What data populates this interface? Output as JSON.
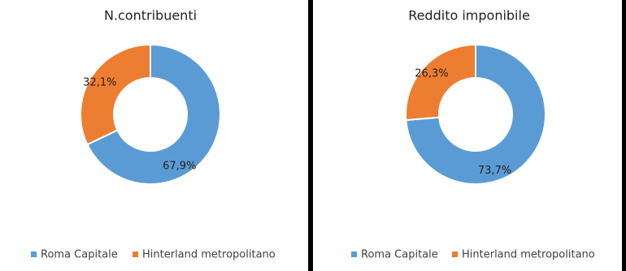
{
  "chart_data": [
    {
      "type": "donut",
      "title": "N.contribuenti",
      "categories": [
        "Roma Capitale",
        "Hinterland metropolitano"
      ],
      "colors": [
        "#5b9bd5",
        "#ed7d31"
      ],
      "values": [
        67.9,
        32.1
      ],
      "value_labels": [
        "67,9%",
        "32,1%"
      ]
    },
    {
      "type": "donut",
      "title": "Reddito imponibile",
      "categories": [
        "Roma Capitale",
        "Hinterland metropolitano"
      ],
      "colors": [
        "#5b9bd5",
        "#ed7d31"
      ],
      "values": [
        73.7,
        26.3
      ],
      "value_labels": [
        "73,7%",
        "26,3%"
      ]
    }
  ]
}
